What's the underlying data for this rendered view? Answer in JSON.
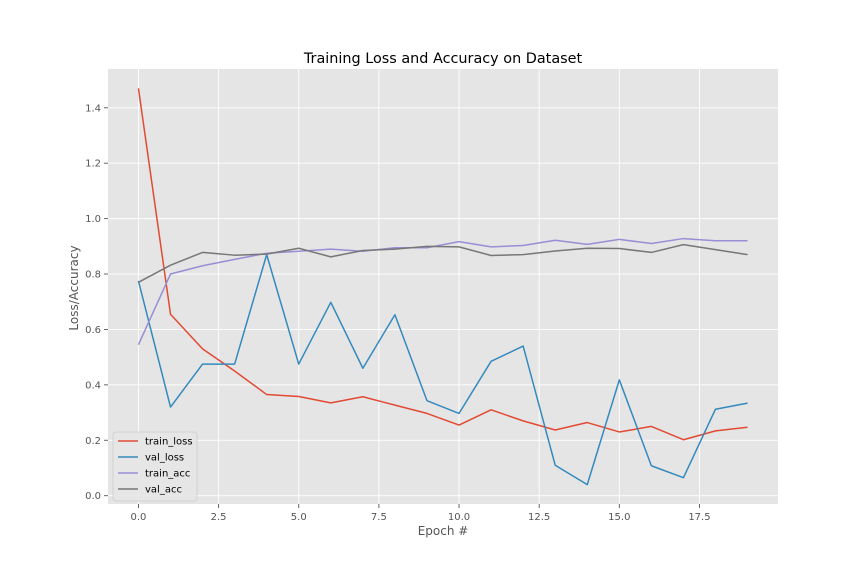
{
  "chart_data": {
    "type": "line",
    "title": "Training Loss and Accuracy on Dataset",
    "xlabel": "Epoch #",
    "ylabel": "Loss/Accuracy",
    "xlim": [
      -0.95,
      19.95
    ],
    "ylim": [
      -0.03,
      1.54
    ],
    "xticks": [
      0.0,
      2.5,
      5.0,
      7.5,
      10.0,
      12.5,
      15.0,
      17.5
    ],
    "xtick_labels": [
      "0.0",
      "2.5",
      "5.0",
      "7.5",
      "10.0",
      "12.5",
      "15.0",
      "17.5"
    ],
    "yticks": [
      0.0,
      0.2,
      0.4,
      0.6,
      0.8,
      1.0,
      1.2,
      1.4
    ],
    "ytick_labels": [
      "0.0",
      "0.2",
      "0.4",
      "0.6",
      "0.8",
      "1.0",
      "1.2",
      "1.4"
    ],
    "grid": true,
    "legend_position": "lower-left",
    "x": [
      0,
      1,
      2,
      3,
      4,
      5,
      6,
      7,
      8,
      9,
      10,
      11,
      12,
      13,
      14,
      15,
      16,
      17,
      18,
      19
    ],
    "series": [
      {
        "name": "train_loss",
        "color": "#E24A33",
        "values": [
          1.47,
          0.655,
          0.53,
          0.45,
          0.365,
          0.358,
          0.335,
          0.357,
          0.327,
          0.297,
          0.255,
          0.31,
          0.27,
          0.237,
          0.264,
          0.23,
          0.25,
          0.202,
          0.234,
          0.247
        ]
      },
      {
        "name": "val_loss",
        "color": "#348ABD",
        "values": [
          0.775,
          0.32,
          0.475,
          0.475,
          0.87,
          0.475,
          0.698,
          0.46,
          0.653,
          0.343,
          0.297,
          0.485,
          0.54,
          0.11,
          0.04,
          0.418,
          0.108,
          0.065,
          0.312,
          0.334
        ]
      },
      {
        "name": "train_acc",
        "color": "#988ED5",
        "values": [
          0.545,
          0.8,
          0.83,
          0.853,
          0.875,
          0.882,
          0.89,
          0.882,
          0.895,
          0.895,
          0.917,
          0.898,
          0.903,
          0.922,
          0.907,
          0.925,
          0.91,
          0.928,
          0.92,
          0.92
        ]
      },
      {
        "name": "val_acc",
        "color": "#777777",
        "values": [
          0.77,
          0.832,
          0.878,
          0.868,
          0.872,
          0.893,
          0.862,
          0.885,
          0.89,
          0.9,
          0.898,
          0.867,
          0.87,
          0.883,
          0.893,
          0.892,
          0.878,
          0.906,
          0.888,
          0.87
        ]
      }
    ],
    "colors": {
      "plot_background": "#E5E5E5",
      "grid": "#FFFFFF",
      "figure_background": "#FFFFFF"
    }
  }
}
